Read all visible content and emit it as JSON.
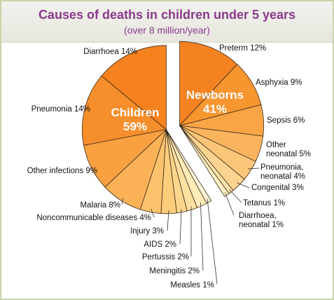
{
  "chart_data": {
    "type": "pie",
    "title": "Causes of deaths in children under 5 years",
    "subtitle": "(over 8 million/year)",
    "groups": [
      {
        "name": "Newborns",
        "percent_label": "41%",
        "value": 41
      },
      {
        "name": "Children",
        "percent_label": "59%",
        "value": 59
      }
    ],
    "slices": [
      {
        "label": "Preterm 12%",
        "value": 12,
        "group": "Newborns",
        "color": "#f58220"
      },
      {
        "label": "Asphyxia 9%",
        "value": 9,
        "group": "Newborns",
        "color": "#f7952f"
      },
      {
        "label": "Sepsis 6%",
        "value": 6,
        "group": "Newborns",
        "color": "#f9a445"
      },
      {
        "label": "Other neonatal 5%",
        "value": 5,
        "group": "Newborns",
        "color": "#fbb45e"
      },
      {
        "label": "Pneumonia, neonatal 4%",
        "value": 4,
        "group": "Newborns",
        "color": "#fcc577"
      },
      {
        "label": "Congenital 3%",
        "value": 3,
        "group": "Newborns",
        "color": "#fdd48f"
      },
      {
        "label": "Tetanus 1%",
        "value": 1,
        "group": "Newborns",
        "color": "#fee3a8"
      },
      {
        "label": "Diarrhoea, neonatal 1%",
        "value": 1,
        "group": "Newborns",
        "color": "#fff0c4"
      },
      {
        "label": "Measles 1%",
        "value": 1,
        "group": "Children",
        "color": "#fff5d6"
      },
      {
        "label": "Meningitis 2%",
        "value": 2,
        "group": "Children",
        "color": "#ffeab8"
      },
      {
        "label": "Pertussis 2%",
        "value": 2,
        "group": "Children",
        "color": "#fee0a0"
      },
      {
        "label": "AIDS 2%",
        "value": 2,
        "group": "Children",
        "color": "#fdd68c"
      },
      {
        "label": "Injury 3%",
        "value": 3,
        "group": "Children",
        "color": "#fdcd7c"
      },
      {
        "label": "Noncommunicable diseases 4%",
        "value": 4,
        "group": "Children",
        "color": "#fcc26c"
      },
      {
        "label": "Malaria 8%",
        "value": 8,
        "group": "Children",
        "color": "#fbb257"
      },
      {
        "label": "Other infections 9%",
        "value": 9,
        "group": "Children",
        "color": "#f9a040"
      },
      {
        "label": "Pneumonia 14%",
        "value": 14,
        "group": "Children",
        "color": "#f78e2c"
      },
      {
        "label": "Diarrhoea 14%",
        "value": 14,
        "group": "Children",
        "color": "#f5811f"
      }
    ]
  }
}
